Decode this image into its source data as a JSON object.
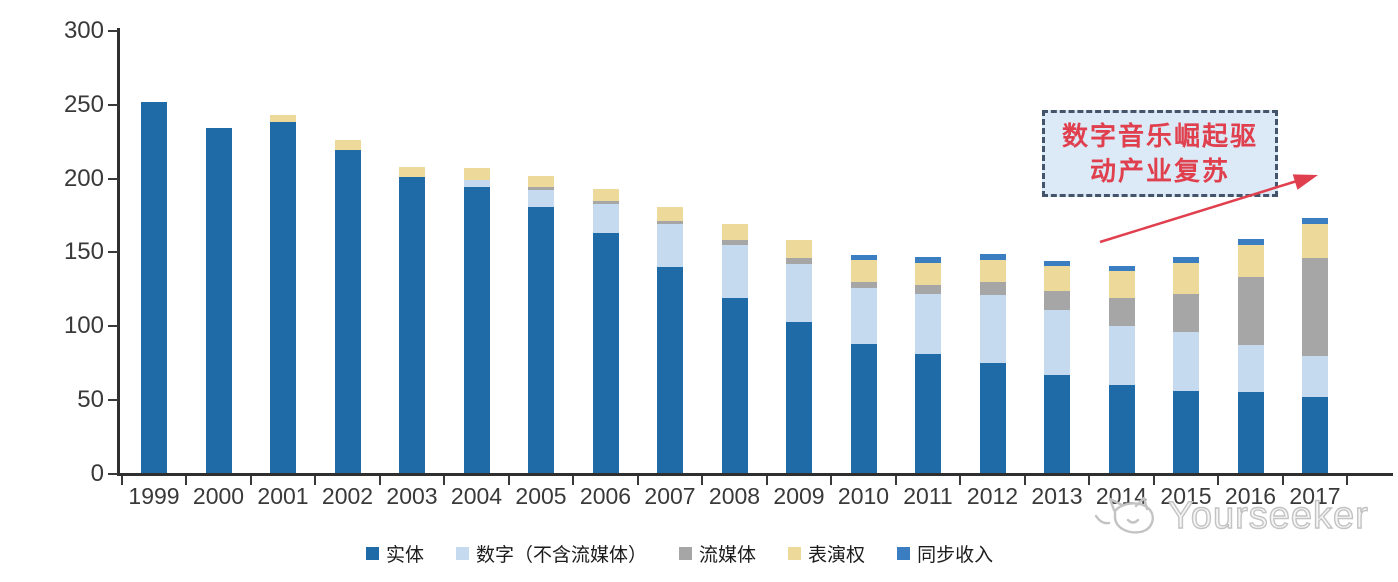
{
  "chart_data": {
    "type": "bar",
    "stacked": true,
    "title": "",
    "xlabel": "",
    "ylabel": "",
    "categories": [
      "1999",
      "2000",
      "2001",
      "2002",
      "2003",
      "2004",
      "2005",
      "2006",
      "2007",
      "2008",
      "2009",
      "2010",
      "2011",
      "2012",
      "2013",
      "2014",
      "2015",
      "2016",
      "2017"
    ],
    "series": [
      {
        "id": "physical",
        "name": "实体",
        "color": "#1F6BA8",
        "values": [
          252,
          234,
          238,
          219,
          201,
          194,
          181,
          163,
          140,
          119,
          103,
          88,
          81,
          75,
          67,
          60,
          56,
          55,
          52
        ]
      },
      {
        "id": "digital-ex-streaming",
        "name": "数字（不含流媒体）",
        "color": "#C5DAEF",
        "values": [
          0,
          0,
          0,
          0,
          0,
          5,
          11,
          20,
          29,
          36,
          39,
          38,
          41,
          46,
          44,
          40,
          40,
          32,
          28
        ]
      },
      {
        "id": "streaming",
        "name": "流媒体",
        "color": "#A6A6A6",
        "values": [
          0,
          0,
          0,
          0,
          0,
          0,
          2,
          2,
          2,
          3,
          4,
          4,
          6,
          9,
          13,
          19,
          26,
          46,
          66
        ]
      },
      {
        "id": "performance-rights",
        "name": "表演权",
        "color": "#EDDA9A",
        "values": [
          0,
          0,
          5,
          7,
          7,
          8,
          8,
          8,
          10,
          11,
          12,
          15,
          15,
          15,
          17,
          18,
          21,
          22,
          23
        ]
      },
      {
        "id": "sync-revenue",
        "name": "同步收入",
        "color": "#3A7EC1",
        "values": [
          0,
          0,
          0,
          0,
          0,
          0,
          0,
          0,
          0,
          0,
          0,
          3,
          4,
          4,
          3,
          4,
          4,
          4,
          4
        ]
      }
    ],
    "ylim": [
      0,
      300
    ],
    "yticks": [
      0,
      50,
      100,
      150,
      200,
      250,
      300
    ],
    "grid": false,
    "legend_position": "bottom"
  },
  "annotation": {
    "lines": [
      "数字音乐崛起驱",
      "动产业复苏"
    ],
    "full_text": "数字音乐崛起驱动产业复苏",
    "text_color": "#E0404E",
    "box_fill": "#DCE9F6",
    "box_border": "#44546A",
    "arrow_color": "#E0404E"
  },
  "watermark": {
    "text": "Yourseeker",
    "color": "#c3c3c3"
  },
  "axis_colors": {
    "line": "#2f2f2f",
    "label": "#393939"
  }
}
